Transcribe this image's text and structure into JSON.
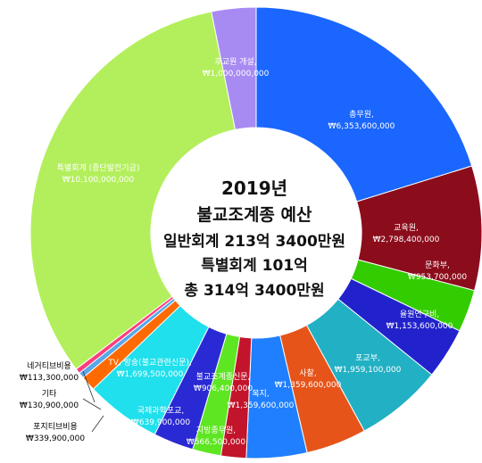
{
  "chart_data": {
    "type": "pie",
    "donut": true,
    "center_lines": [
      "2019년",
      "불교조계종 예산",
      "일반회계 213억 3400만원",
      "특별회계 101억",
      "총 314억 3400만원"
    ],
    "slices": [
      {
        "label": "총무원,",
        "value_text": "₩6,353,600,000",
        "value": 6353600000,
        "color": "#1a66ff"
      },
      {
        "label": "교육원,",
        "value_text": "₩2,798,400,000",
        "value": 2798400000,
        "color": "#8b0d1c"
      },
      {
        "label": "문화부,",
        "value_text": "₩953,700,000",
        "value": 953700000,
        "color": "#33cc00"
      },
      {
        "label": "율원연구비,",
        "value_text": "₩1,153,600,000",
        "value": 1153600000,
        "color": "#2222cc"
      },
      {
        "label": "포교부,",
        "value_text": "₩1,959,100,000",
        "value": 1959100000,
        "color": "#22b0c4"
      },
      {
        "label": "사찰,",
        "value_text": "₩1,359,600,000",
        "value": 1359600000,
        "color": "#e6541a"
      },
      {
        "label": "복지,",
        "value_text": "₩1,359,600,000",
        "value": 1359600000,
        "color": "#1f7fff"
      },
      {
        "label": "지방종무원,",
        "value_text": "₩566,500,000",
        "value": 566500000,
        "color": "#c2142b"
      },
      {
        "label": "국제과학포교,",
        "value_text": "₩639,900,000",
        "value": 639900000,
        "color": "#5ee622"
      },
      {
        "label": "불교조계종신문,",
        "value_text": "₩906,400,000",
        "value": 906400000,
        "color": "#2a2ad4"
      },
      {
        "label": "TV, 방송(불교관련신문),",
        "value_text": "₩1,699,500,000",
        "value": 1699500000,
        "color": "#1fe0ec"
      },
      {
        "label": "포지티브비용",
        "value_text": "₩339,900,000",
        "value": 339900000,
        "color": "#ff6a00"
      },
      {
        "label": "기타",
        "value_text": "₩130,900,000",
        "value": 130900000,
        "color": "#5aa7e8"
      },
      {
        "label": "네거티브비용",
        "value_text": "₩113,300,000",
        "value": 113300000,
        "color": "#ff3d7a"
      },
      {
        "label": "특별회계 (종단발전기금)",
        "value_text": "₩10,100,000,000",
        "value": 10100000000,
        "color": "#b3ef5c"
      },
      {
        "label": "후교원 개설,",
        "value_text": "₩1,000,000,000",
        "value": 1000000000,
        "color": "#a78bf2"
      }
    ]
  }
}
